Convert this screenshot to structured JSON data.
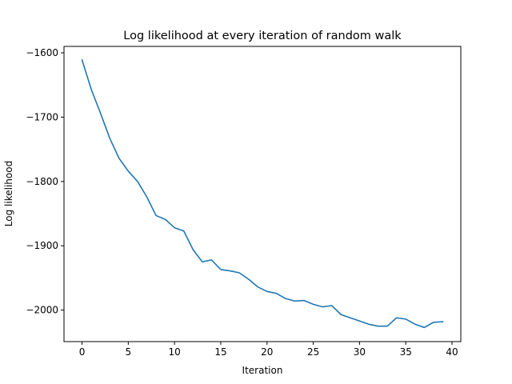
{
  "chart_data": {
    "type": "line",
    "title": "Log likelihood at every iteration of random walk",
    "xlabel": "Iteration",
    "ylabel": "Log likelihood",
    "xlim": [
      -1.95,
      40.95
    ],
    "ylim": [
      -2049,
      -1590
    ],
    "xticks": [
      0,
      5,
      10,
      15,
      20,
      25,
      30,
      35,
      40
    ],
    "yticks": [
      -1600,
      -1700,
      -1800,
      -1900,
      -2000
    ],
    "ytick_labels": [
      "−1600",
      "−1700",
      "−1800",
      "−1900",
      "−2000"
    ],
    "grid": false,
    "series": [
      {
        "color": "#1f77b4",
        "x": [
          0,
          1,
          2,
          3,
          4,
          5,
          6,
          7,
          8,
          9,
          10,
          11,
          12,
          13,
          14,
          15,
          16,
          17,
          18,
          19,
          20,
          21,
          22,
          23,
          24,
          25,
          26,
          27,
          28,
          29,
          30,
          31,
          32,
          33,
          34,
          35,
          36,
          37,
          38,
          39
        ],
        "values": [
          -1611,
          -1657,
          -1694,
          -1733,
          -1764,
          -1784,
          -1800,
          -1824,
          -1853,
          -1859,
          -1872,
          -1877,
          -1906,
          -1925,
          -1922,
          -1937,
          -1939,
          -1942,
          -1952,
          -1964,
          -1971,
          -1974,
          -1982,
          -1986,
          -1985,
          -1991,
          -1995,
          -1993,
          -2007,
          -2012,
          -2017,
          -2022,
          -2025,
          -2025,
          -2012,
          -2014,
          -2022,
          -2027,
          -2019,
          -2018
        ]
      }
    ]
  }
}
